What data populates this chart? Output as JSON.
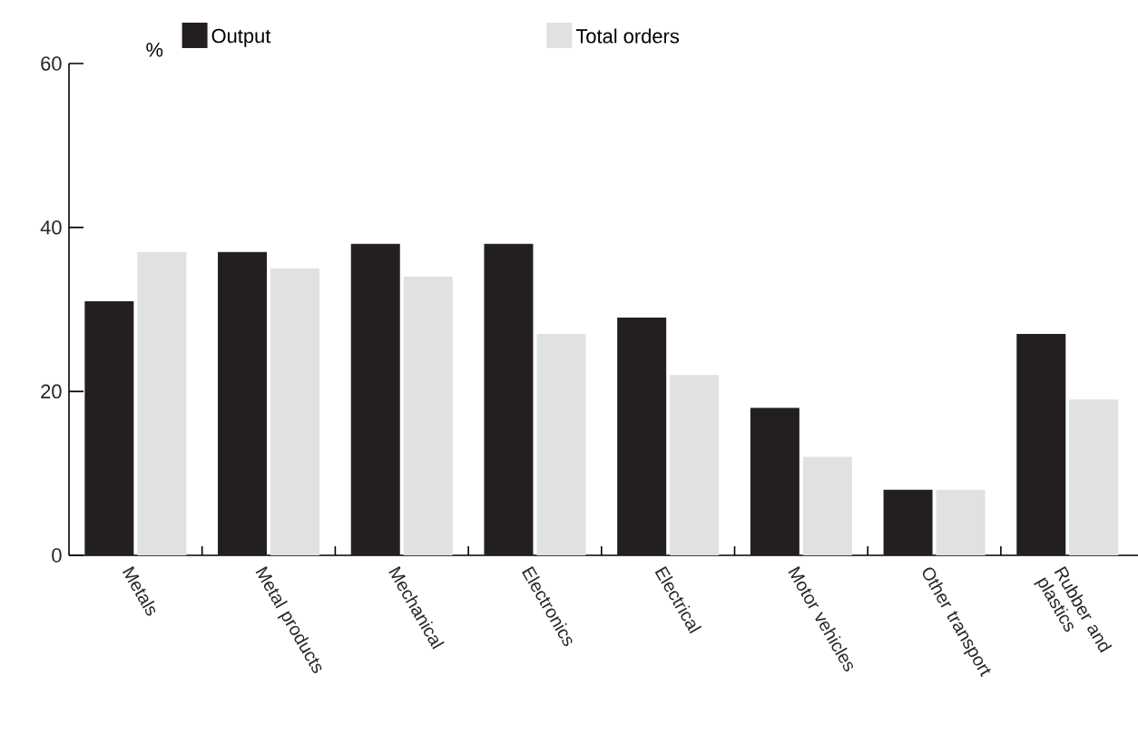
{
  "chart_data": {
    "type": "bar",
    "ylabel": "%",
    "categories": [
      "Metals",
      "Metal products",
      "Mechanical",
      "Electronics",
      "Electrical",
      "Motor vehicles",
      "Other transport",
      "Rubber and plastics"
    ],
    "series": [
      {
        "name": "Output",
        "color": "#231f20",
        "values": [
          31,
          37,
          38,
          38,
          29,
          18,
          8,
          27
        ]
      },
      {
        "name": "Total orders",
        "color": "#e0e1e3",
        "values": [
          37,
          35,
          34,
          27,
          22,
          12,
          8,
          19
        ]
      }
    ],
    "ylim": [
      0,
      60
    ],
    "yticks": [
      0,
      20,
      40,
      60
    ],
    "legend": "top",
    "grid": false
  }
}
